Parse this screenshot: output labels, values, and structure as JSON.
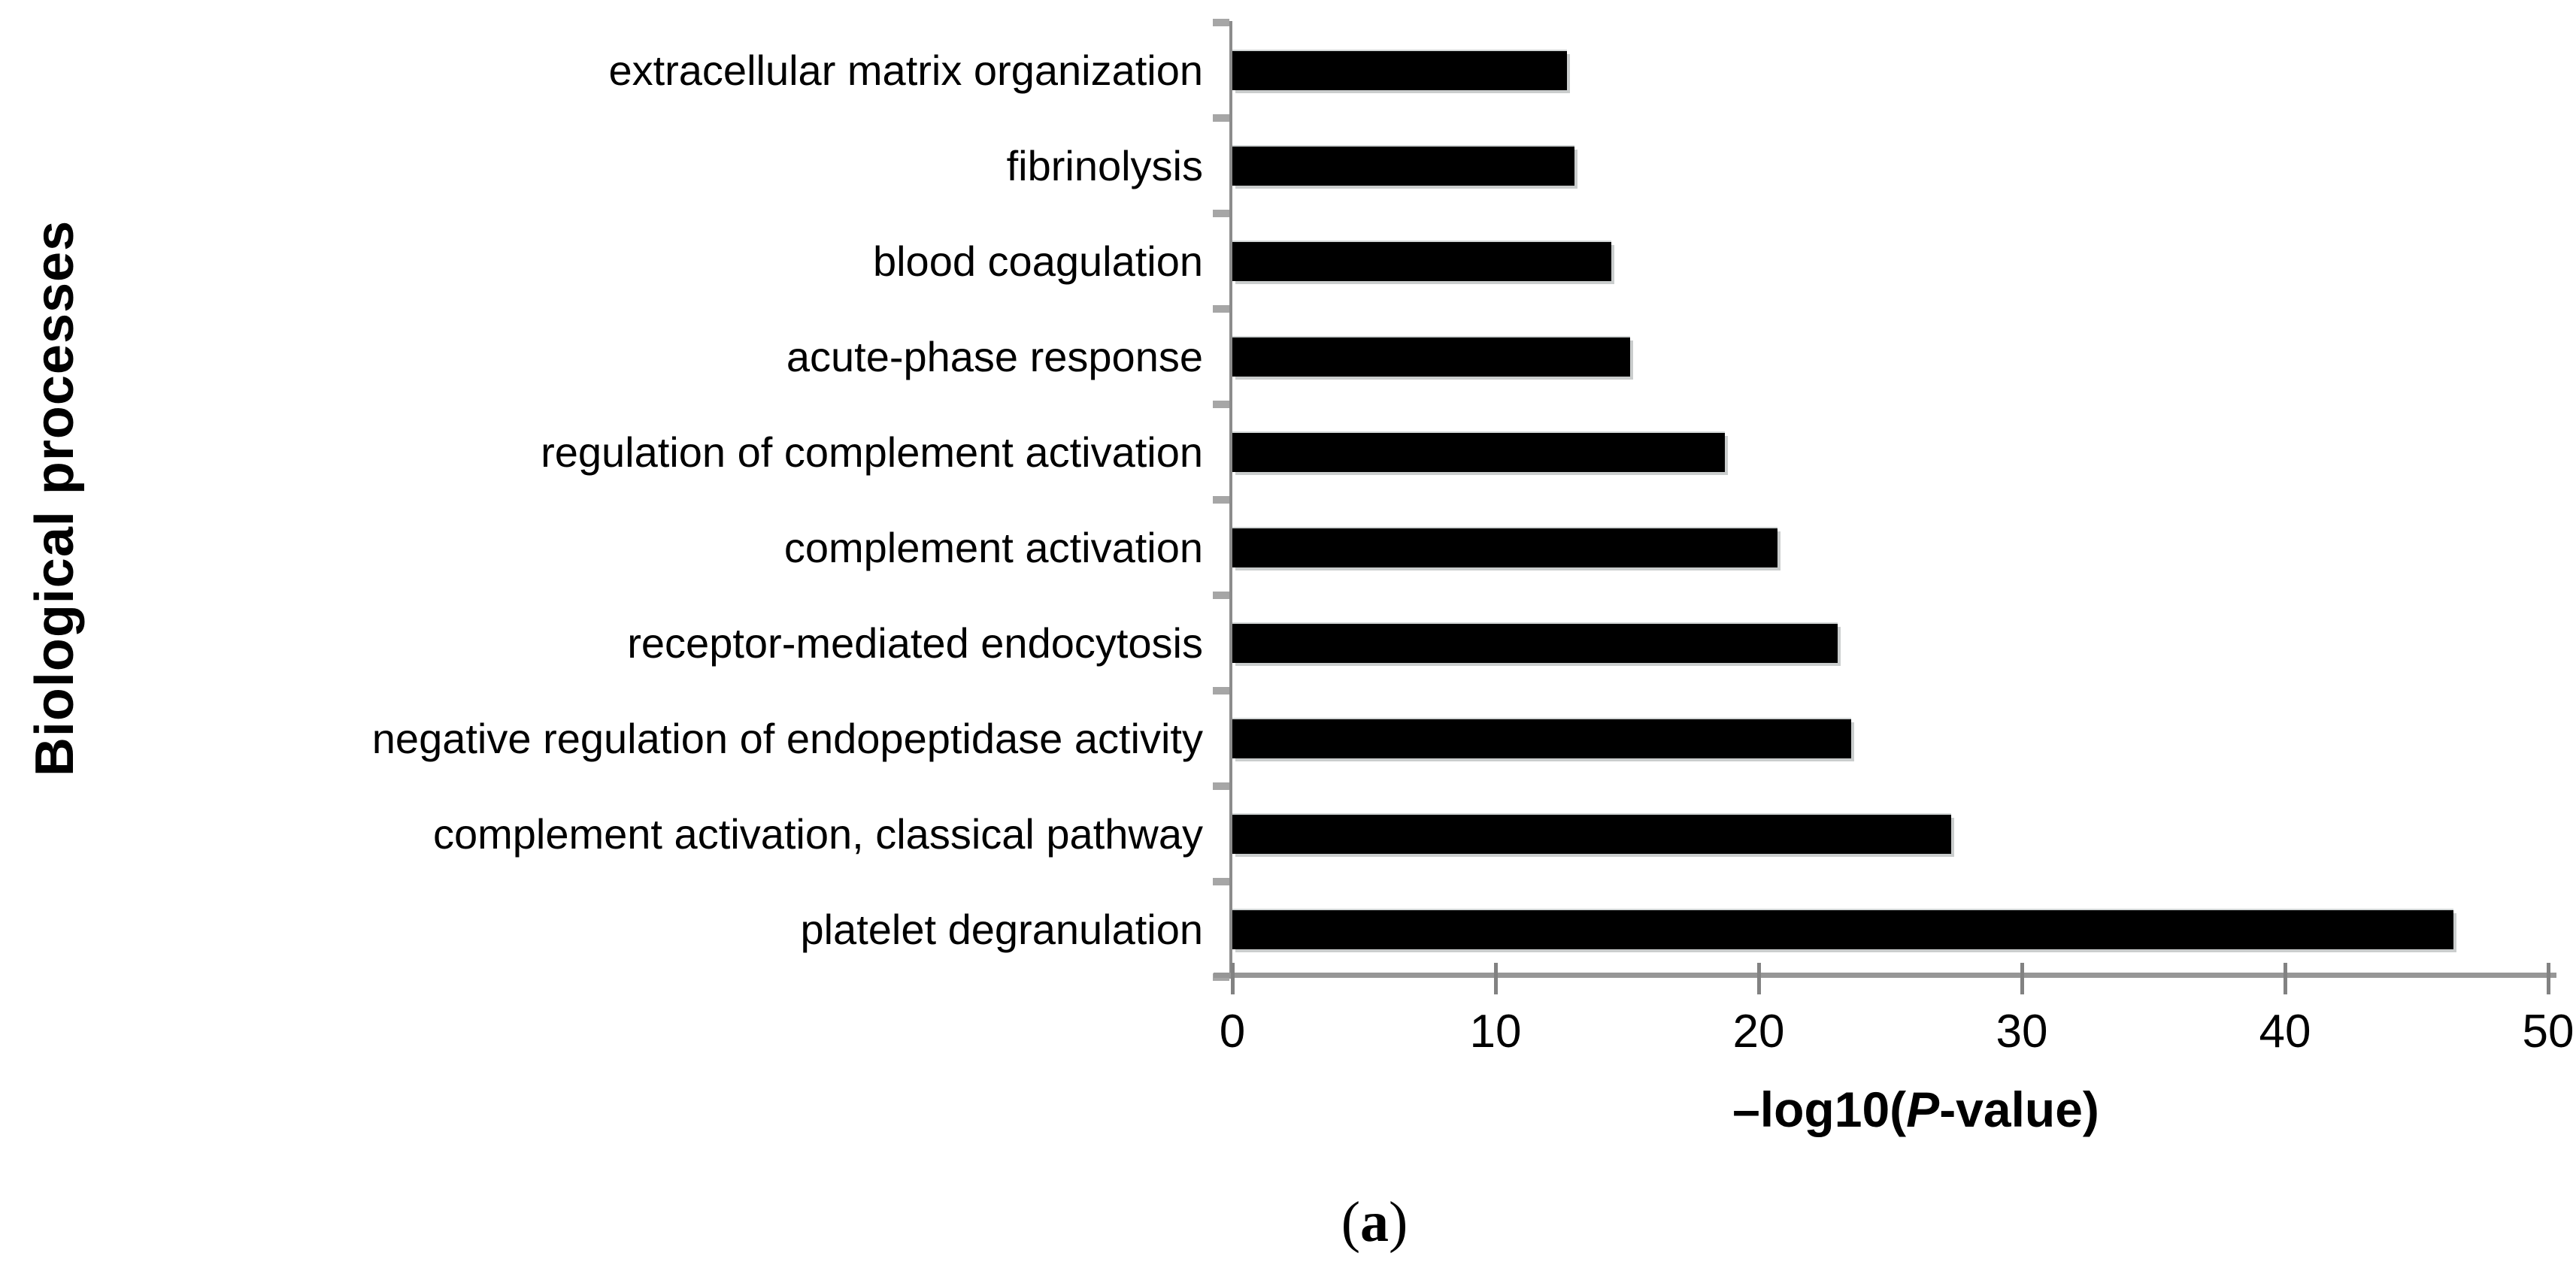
{
  "chart_data": {
    "type": "bar",
    "orientation": "horizontal",
    "title": "",
    "categories": [
      "extracellular matrix organization",
      "fibrinolysis",
      "blood coagulation",
      "acute-phase response",
      "regulation of complement activation",
      "complement activation",
      "receptor-mediated endocytosis",
      "negative regulation of endopeptidase activity",
      "complement activation, classical pathway",
      "platelet degranulation"
    ],
    "values": [
      12.7,
      13.0,
      14.4,
      15.1,
      18.7,
      20.7,
      23.0,
      23.5,
      27.3,
      46.4
    ],
    "xlabel": "–log10(P-value)",
    "ylabel": "Biological processes",
    "xlim": [
      0,
      50
    ],
    "xticks": [
      0,
      10,
      20,
      30,
      40,
      50
    ],
    "grid": false,
    "legend": null,
    "bar_color": "#000000",
    "caption": "(a)"
  },
  "labels": {
    "y_axis_title": "Biological processes",
    "x_axis_title_prefix": "–log10(",
    "x_axis_title_italic": "P",
    "x_axis_title_suffix": "-value)",
    "caption_open": "(",
    "caption_letter": "a",
    "caption_close": ")"
  },
  "colors": {
    "bar": "#000000",
    "axis_line": "#969696",
    "y_axis_line": "#8c8c8c",
    "tick": "#828282",
    "minor_tick": "#a6a6a6",
    "text": "#000000",
    "background": "#ffffff"
  }
}
